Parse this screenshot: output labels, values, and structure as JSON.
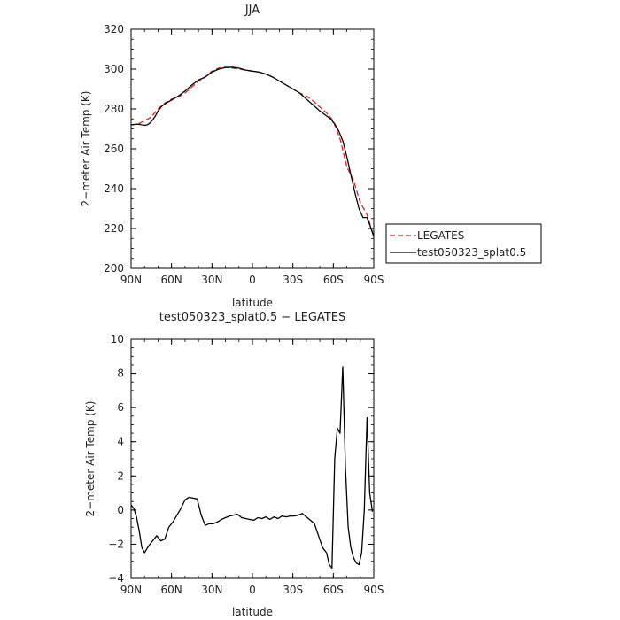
{
  "chart_data": [
    {
      "type": "line",
      "title": "JJA",
      "xlabel": "latitude",
      "ylabel": "2−meter Air Temp (K)",
      "xlim": [
        90,
        -90
      ],
      "ylim": [
        200,
        320
      ],
      "x_ticks": [
        90,
        60,
        30,
        0,
        -30,
        -60,
        -90
      ],
      "x_tick_labels": [
        "90N",
        "60N",
        "30N",
        "0",
        "30S",
        "60S",
        "90S"
      ],
      "y_ticks": [
        200,
        220,
        240,
        260,
        280,
        300,
        320
      ],
      "y_tick_labels": [
        "200",
        "220",
        "240",
        "260",
        "280",
        "300",
        "320"
      ],
      "legend_position": "right",
      "series": [
        {
          "name": "LEGATES",
          "color": "#e02020",
          "dash": "dashed",
          "x": [
            90,
            85,
            80,
            75,
            70,
            65,
            60,
            55,
            50,
            45,
            40,
            35,
            30,
            25,
            20,
            15,
            10,
            5,
            0,
            -5,
            -10,
            -15,
            -20,
            -25,
            -30,
            -35,
            -40,
            -45,
            -50,
            -55,
            -60,
            -65,
            -70,
            -75,
            -80,
            -85,
            -90
          ],
          "y": [
            272,
            272.5,
            274,
            276,
            280,
            283,
            285,
            286,
            288,
            291,
            294,
            296,
            299,
            300.5,
            301,
            300.5,
            300,
            299.5,
            299,
            298.5,
            297.5,
            296,
            294,
            292,
            290,
            288,
            286.5,
            284,
            281,
            278,
            274,
            265,
            251,
            244,
            233,
            227,
            216
          ]
        },
        {
          "name": "test050323_splat0.5",
          "color": "#000000",
          "dash": "solid",
          "x": [
            90,
            88,
            86,
            84,
            82,
            80,
            78,
            76,
            74,
            72,
            70,
            67,
            64,
            60,
            55,
            50,
            45,
            40,
            35,
            30,
            25,
            20,
            15,
            10,
            5,
            0,
            -5,
            -10,
            -15,
            -20,
            -25,
            -30,
            -35,
            -40,
            -45,
            -50,
            -55,
            -58,
            -61,
            -64,
            -67,
            -70,
            -73,
            -76,
            -79,
            -82,
            -85,
            -87,
            -90
          ],
          "y": [
            272,
            272.2,
            272.4,
            272.3,
            272,
            271.8,
            272,
            273,
            274.5,
            276.5,
            279,
            281.5,
            283,
            284.5,
            286.5,
            289,
            292,
            294.5,
            296,
            298.5,
            300,
            300.8,
            301,
            300.5,
            299.5,
            299,
            298.5,
            297.5,
            296,
            294,
            292,
            290,
            288,
            285,
            282,
            279,
            276.5,
            275,
            272.5,
            269,
            264,
            256,
            247,
            238,
            230,
            225.5,
            225.5,
            222,
            216
          ]
        }
      ]
    },
    {
      "type": "line",
      "title": "test050323_splat0.5 − LEGATES",
      "xlabel": "latitude",
      "ylabel": "2−meter Air Temp (K)",
      "xlim": [
        90,
        -90
      ],
      "ylim": [
        -4,
        10
      ],
      "x_ticks": [
        90,
        60,
        30,
        0,
        -30,
        -60,
        -90
      ],
      "x_tick_labels": [
        "90N",
        "60N",
        "30N",
        "0",
        "30S",
        "60S",
        "90S"
      ],
      "y_ticks": [
        -4,
        -2,
        0,
        2,
        4,
        6,
        8,
        10
      ],
      "y_tick_labels": [
        "−4",
        "−2",
        "0",
        "2",
        "4",
        "6",
        "8",
        "10"
      ],
      "series": [
        {
          "name": "",
          "color": "#000000",
          "dash": "solid",
          "x": [
            90,
            88,
            86,
            84,
            82,
            80,
            77,
            74,
            71,
            68,
            65,
            62,
            59,
            56,
            53,
            50,
            47,
            44,
            41,
            38,
            35,
            32,
            29,
            26,
            23,
            20,
            17,
            14,
            11,
            8,
            5,
            2,
            -1,
            -4,
            -7,
            -10,
            -13,
            -16,
            -19,
            -22,
            -25,
            -28,
            -31,
            -34,
            -37,
            -40,
            -43,
            -46,
            -49,
            -52,
            -55,
            -57,
            -59,
            -61,
            -63,
            -65,
            -67,
            -69,
            -71,
            -73,
            -75,
            -77,
            -79,
            -81,
            -83,
            -85,
            -87,
            -89
          ],
          "y": [
            0.3,
            0.1,
            -0.4,
            -1.2,
            -2.2,
            -2.5,
            -2.1,
            -1.8,
            -1.5,
            -1.8,
            -1.7,
            -1.0,
            -0.7,
            -0.3,
            0.1,
            0.6,
            0.75,
            0.7,
            0.65,
            -0.3,
            -0.9,
            -0.8,
            -0.8,
            -0.7,
            -0.55,
            -0.45,
            -0.35,
            -0.3,
            -0.25,
            -0.45,
            -0.5,
            -0.55,
            -0.6,
            -0.45,
            -0.5,
            -0.4,
            -0.55,
            -0.4,
            -0.5,
            -0.35,
            -0.4,
            -0.35,
            -0.35,
            -0.3,
            -0.2,
            -0.4,
            -0.6,
            -0.8,
            -1.5,
            -2.2,
            -2.5,
            -3.2,
            -3.4,
            3.0,
            4.8,
            4.5,
            8.4,
            2.5,
            -1.0,
            -2.2,
            -2.8,
            -3.1,
            -3.2,
            -2.5,
            0.0,
            5.4,
            1.0,
            -0.1
          ]
        }
      ]
    }
  ]
}
